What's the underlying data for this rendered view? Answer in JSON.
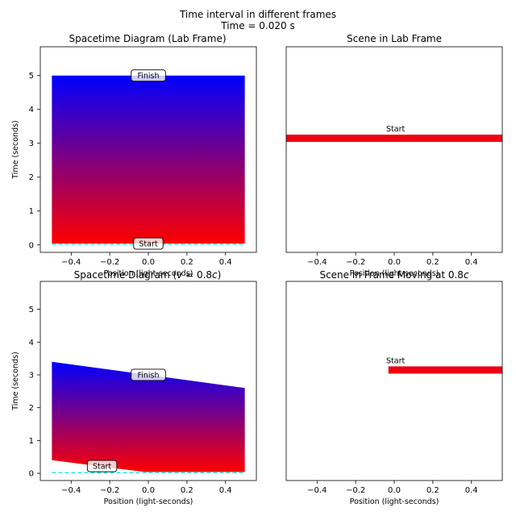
{
  "figure": {
    "title": "Time interval in different frames",
    "subtitle": "Time = 0.020 s"
  },
  "colors": {
    "bottom": "#ff0000",
    "top": "#0000ff",
    "bar": "#ee0011",
    "dashed": "#00e5e5",
    "label_bg": "#ffffff"
  },
  "chart_data": [
    {
      "type": "area",
      "title": "Spacetime Diagram (Lab Frame)",
      "xlabel": "Position (light-seconds)",
      "ylabel": "Time (seconds)",
      "xlim": [
        -0.56,
        0.56
      ],
      "ylim": [
        -0.22,
        5.85
      ],
      "xticks": [
        -0.4,
        -0.2,
        0.0,
        0.2,
        0.4
      ],
      "xtick_labels": [
        "−0.4",
        "−0.2",
        "0.0",
        "0.2",
        "0.4"
      ],
      "yticks": [
        0,
        1,
        2,
        3,
        4,
        5
      ],
      "ytick_labels": [
        "0",
        "1",
        "2",
        "3",
        "4",
        "5"
      ],
      "polygon": [
        [
          -0.5,
          0.04
        ],
        [
          0.5,
          0.04
        ],
        [
          0.5,
          5.0
        ],
        [
          -0.5,
          5.0
        ]
      ],
      "dashed_line": {
        "x": [
          -0.5,
          0.5
        ],
        "y": [
          0.02,
          0.02
        ]
      },
      "labels": [
        {
          "text": "Start",
          "x": 0.0,
          "y": 0.04
        },
        {
          "text": "Finish",
          "x": 0.0,
          "y": 5.0
        }
      ]
    },
    {
      "type": "bar",
      "title": "Scene in Lab Frame",
      "xlabel": "Position (light-seconds)",
      "xlim": [
        -0.56,
        0.56
      ],
      "xticks": [
        -0.4,
        -0.2,
        0.0,
        0.2,
        0.4
      ],
      "xtick_labels": [
        "−0.4",
        "−0.2",
        "0.0",
        "0.2",
        "0.4"
      ],
      "segment": {
        "x_start": -0.56,
        "x_end": 0.56,
        "level": 0.445
      },
      "labels": [
        {
          "text": "Start",
          "x": 0.0
        }
      ]
    },
    {
      "type": "area",
      "title_prefix": "Spacetime Diagram (",
      "title_var": "v",
      "title_mid": " = 0.8",
      "title_c": "c",
      "title_suffix": ")",
      "xlabel": "Position (light-seconds)",
      "ylabel": "Time (seconds)",
      "xlim": [
        -0.56,
        0.56
      ],
      "ylim": [
        -0.22,
        5.85
      ],
      "xticks": [
        -0.4,
        -0.2,
        0.0,
        0.2,
        0.4
      ],
      "xtick_labels": [
        "−0.4",
        "−0.2",
        "0.0",
        "0.2",
        "0.4"
      ],
      "yticks": [
        0,
        1,
        2,
        3,
        4,
        5
      ],
      "ytick_labels": [
        "0",
        "1",
        "2",
        "3",
        "4",
        "5"
      ],
      "polygon": [
        [
          -0.5,
          0.4
        ],
        [
          -0.02,
          0.04
        ],
        [
          0.5,
          0.04
        ],
        [
          0.5,
          2.6
        ],
        [
          -0.5,
          3.4
        ]
      ],
      "dashed_line": {
        "x": [
          -0.5,
          0.5
        ],
        "y": [
          0.02,
          0.02
        ]
      },
      "labels": [
        {
          "text": "Start",
          "x": -0.24,
          "y": 0.22
        },
        {
          "text": "Finish",
          "x": 0.0,
          "y": 3.0
        }
      ]
    },
    {
      "type": "bar",
      "title_prefix": "Scene in Frame Moving at 0.8",
      "title_c": "c",
      "xlabel": "Position (light-seconds)",
      "xlim": [
        -0.56,
        0.56
      ],
      "xticks": [
        -0.4,
        -0.2,
        0.0,
        0.2,
        0.4
      ],
      "xtick_labels": [
        "−0.4",
        "−0.2",
        "0.0",
        "0.2",
        "0.4"
      ],
      "segment": {
        "x_start": -0.03,
        "x_end": 0.56,
        "level": 0.445
      },
      "labels": [
        {
          "text": "Start",
          "x": 0.0
        }
      ]
    }
  ]
}
